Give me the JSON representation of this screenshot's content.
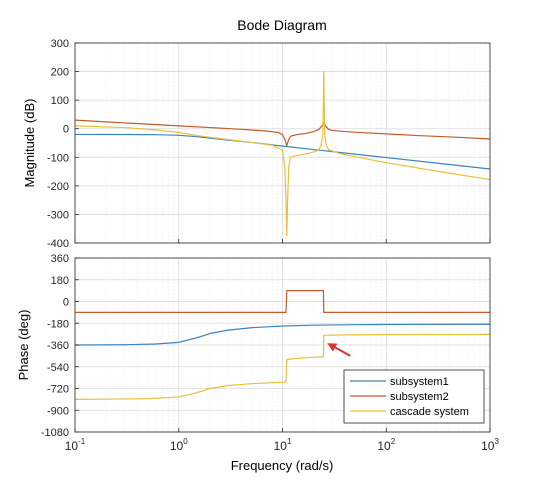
{
  "chart_data": {
    "type": "line",
    "title": "Bode Diagram",
    "xlabel": "Frequency  (rad/s)",
    "xscale": "log",
    "xlim": [
      0.1,
      1000
    ],
    "x_ticks": [
      {
        "value": 0.1,
        "base": "10",
        "exp": "-1"
      },
      {
        "value": 1,
        "base": "10",
        "exp": "0"
      },
      {
        "value": 10,
        "base": "10",
        "exp": "1"
      },
      {
        "value": 100,
        "base": "10",
        "exp": "2"
      },
      {
        "value": 1000,
        "base": "10",
        "exp": "3"
      }
    ],
    "grid": true,
    "legend": {
      "location": "bottom-right",
      "entries": [
        {
          "name": "subsystem1",
          "color": "#3b84bd"
        },
        {
          "name": "subsystem2",
          "color": "#c25b2b"
        },
        {
          "name": "cascade system",
          "color": "#e9c03c"
        }
      ]
    },
    "annotation": {
      "type": "arrow",
      "color": "#e03030",
      "from": {
        "x": 45,
        "y": -450
      },
      "to": {
        "x": 27,
        "y": -345
      }
    },
    "magnitude": {
      "ylabel": "Magnitude (dB)",
      "ylim": [
        -400,
        300
      ],
      "yticks": [
        300,
        200,
        100,
        0,
        -100,
        -200,
        -300,
        -400
      ],
      "series": [
        {
          "name": "subsystem1",
          "color": "#3b84bd",
          "points": [
            [
              0.1,
              -20
            ],
            [
              0.3,
              -20.3
            ],
            [
              0.6,
              -21
            ],
            [
              1,
              -23
            ],
            [
              1.5,
              -28
            ],
            [
              2,
              -33
            ],
            [
              3,
              -40
            ],
            [
              5,
              -48
            ],
            [
              10,
              -61
            ],
            [
              20,
              -73
            ],
            [
              50,
              -89
            ],
            [
              100,
              -101
            ],
            [
              300,
              -120
            ],
            [
              1000,
              -141
            ]
          ]
        },
        {
          "name": "subsystem2",
          "color": "#c25b2b",
          "points": [
            [
              0.1,
              30
            ],
            [
              0.2,
              24
            ],
            [
              0.5,
              16
            ],
            [
              1,
              10
            ],
            [
              2,
              4
            ],
            [
              4,
              -2
            ],
            [
              7,
              -8
            ],
            [
              9,
              -13
            ],
            [
              10,
              -20
            ],
            [
              10.6,
              -40
            ],
            [
              11,
              -60
            ],
            [
              11.4,
              -40
            ],
            [
              12,
              -26
            ],
            [
              14,
              -20
            ],
            [
              17,
              -16
            ],
            [
              20,
              -10
            ],
            [
              22.5,
              -2
            ],
            [
              24,
              10
            ],
            [
              25,
              20
            ],
            [
              26,
              10
            ],
            [
              27.5,
              -1
            ],
            [
              30,
              -6
            ],
            [
              40,
              -10
            ],
            [
              60,
              -14
            ],
            [
              100,
              -18
            ],
            [
              200,
              -24
            ],
            [
              500,
              -30
            ],
            [
              1000,
              -36
            ]
          ]
        },
        {
          "name": "cascade system",
          "color": "#e9c03c",
          "points": [
            [
              0.1,
              10
            ],
            [
              0.3,
              4
            ],
            [
              0.6,
              -4
            ],
            [
              1,
              -13
            ],
            [
              1.5,
              -24
            ],
            [
              2,
              -30
            ],
            [
              3,
              -38
            ],
            [
              5,
              -48
            ],
            [
              8,
              -58
            ],
            [
              10,
              -75
            ],
            [
              10.5,
              -130
            ],
            [
              10.8,
              -250
            ],
            [
              11,
              -375
            ],
            [
              11.2,
              -250
            ],
            [
              11.5,
              -130
            ],
            [
              12,
              -100
            ],
            [
              14,
              -93
            ],
            [
              18,
              -86
            ],
            [
              22,
              -76
            ],
            [
              23.5,
              -60
            ],
            [
              24.5,
              -20
            ],
            [
              25,
              200
            ],
            [
              25.5,
              -20
            ],
            [
              26.5,
              -60
            ],
            [
              28,
              -74
            ],
            [
              35,
              -86
            ],
            [
              50,
              -98
            ],
            [
              100,
              -119
            ],
            [
              300,
              -148
            ],
            [
              1000,
              -178
            ]
          ]
        }
      ]
    },
    "phase": {
      "ylabel": "Phase (deg)",
      "ylim": [
        -1080,
        360
      ],
      "yticks": [
        360,
        180,
        0,
        -180,
        -360,
        -540,
        -720,
        -900,
        -1080
      ],
      "series": [
        {
          "name": "subsystem1",
          "color": "#3b84bd",
          "points": [
            [
              0.1,
              -360
            ],
            [
              0.3,
              -358
            ],
            [
              0.6,
              -352
            ],
            [
              1,
              -338
            ],
            [
              1.5,
              -300
            ],
            [
              2,
              -265
            ],
            [
              3,
              -237
            ],
            [
              5,
              -217
            ],
            [
              10,
              -203
            ],
            [
              20,
              -196
            ],
            [
              50,
              -192
            ],
            [
              100,
              -190
            ],
            [
              1000,
              -188
            ]
          ]
        },
        {
          "name": "subsystem2",
          "color": "#c25b2b",
          "points": [
            [
              0.1,
              -90
            ],
            [
              10.8,
              -90
            ],
            [
              11,
              90
            ],
            [
              24.8,
              90
            ],
            [
              25,
              -90
            ],
            [
              1000,
              -90
            ]
          ]
        },
        {
          "name": "cascade system",
          "color": "#e9c03c",
          "points": [
            [
              0.1,
              -810
            ],
            [
              0.5,
              -805
            ],
            [
              1,
              -790
            ],
            [
              1.5,
              -755
            ],
            [
              2,
              -720
            ],
            [
              3,
              -695
            ],
            [
              5,
              -680
            ],
            [
              10,
              -668
            ],
            [
              10.8,
              -665
            ],
            [
              11,
              -480
            ],
            [
              14,
              -470
            ],
            [
              20,
              -462
            ],
            [
              24.8,
              -458
            ],
            [
              25,
              -280
            ],
            [
              40,
              -276
            ],
            [
              100,
              -274
            ],
            [
              1000,
              -272
            ]
          ]
        }
      ]
    }
  }
}
